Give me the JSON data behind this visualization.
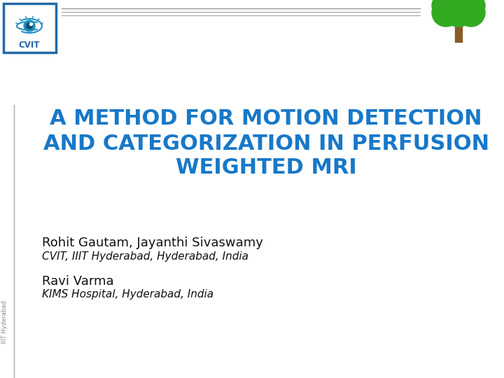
{
  "title_line1": "A METHOD FOR MOTION DETECTION",
  "title_line2": "AND CATEGORIZATION IN PERFUSION",
  "title_line3": "WEIGHTED MRI",
  "title_color": "#1878C8",
  "title_fontsize": 22,
  "author1_name": "Rohit Gautam, Jayanthi Sivaswamy",
  "author1_affil": "CVIT, IIIT Hyderabad, Hyderabad, India",
  "author2_name": "Ravi Varma",
  "author2_affil": "KIMS Hospital, Hyderabad, India",
  "author_name_fontsize": 13,
  "author_affil_fontsize": 11,
  "author_color": "#111111",
  "bg_color": "#ffffff",
  "header_line_color": "#999999",
  "sidebar_color": "#aaaaaa",
  "cvit_box_color": "#2468A8",
  "vertical_text": "IIIT Hyderabad",
  "vertical_text_fontsize": 6,
  "vertical_text_color": "#888888",
  "tree_green": "#33aa22",
  "tree_trunk": "#8B5A2B"
}
